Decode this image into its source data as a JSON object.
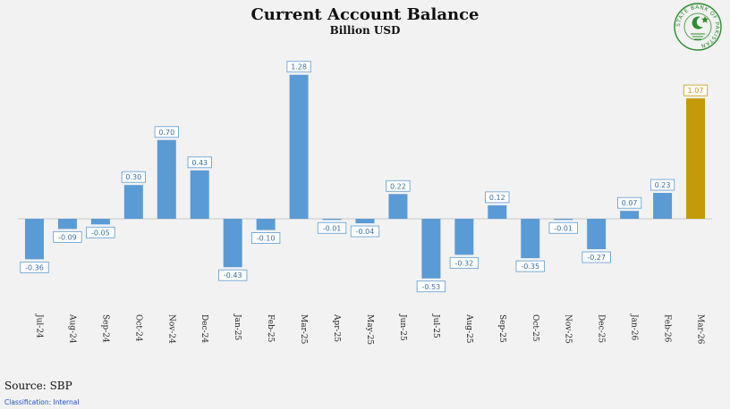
{
  "header": {
    "title": "Current Account Balance",
    "subtitle": "Billion USD"
  },
  "footer": {
    "source": "Source: SBP",
    "classification": "Classification: Internal"
  },
  "logo": {
    "icon": "sbp-seal-icon",
    "text": "STATE BANK OF PAKISTAN",
    "color": "#2e8b2e"
  },
  "colors": {
    "bar": "#5b9bd5",
    "highlight": "#c49a0a",
    "label_text": "#3a6ea5",
    "background": "#f2f2f2"
  },
  "chart_data": {
    "type": "bar",
    "title": "Current Account Balance",
    "subtitle": "Billion USD",
    "categories": [
      "Jul-24",
      "Aug-24",
      "Sep-24",
      "Oct-24",
      "Nov-24",
      "Dec-24",
      "Jan-25",
      "Feb-25",
      "Mar-25",
      "Apr-25",
      "May-25",
      "Jun-25",
      "Jul-25",
      "Aug-25",
      "Sep-25",
      "Oct-25",
      "Nov-25",
      "Dec-25",
      "Jan-26",
      "Feb-26",
      "Mar-26"
    ],
    "values": [
      -0.36,
      -0.09,
      -0.05,
      0.3,
      0.7,
      0.43,
      -0.43,
      -0.1,
      1.28,
      -0.01,
      -0.04,
      0.22,
      -0.53,
      -0.32,
      0.12,
      -0.35,
      -0.01,
      -0.27,
      0.07,
      0.23,
      1.07
    ],
    "labels": [
      "-0.36",
      "-0.09",
      "-0.05",
      "0.30",
      "0.70",
      "0.43",
      "-0.43",
      "-0.10",
      "1.28",
      "-0.01",
      "-0.04",
      "0.22",
      "-0.53",
      "-0.32",
      "0.12",
      "-0.35",
      "-0.01",
      "-0.27",
      "0.07",
      "0.23",
      "1.07"
    ],
    "highlight_index": 20,
    "ylim": [
      -0.55,
      1.3
    ],
    "grid": false,
    "legend": "none",
    "xlabel": "",
    "ylabel": ""
  }
}
